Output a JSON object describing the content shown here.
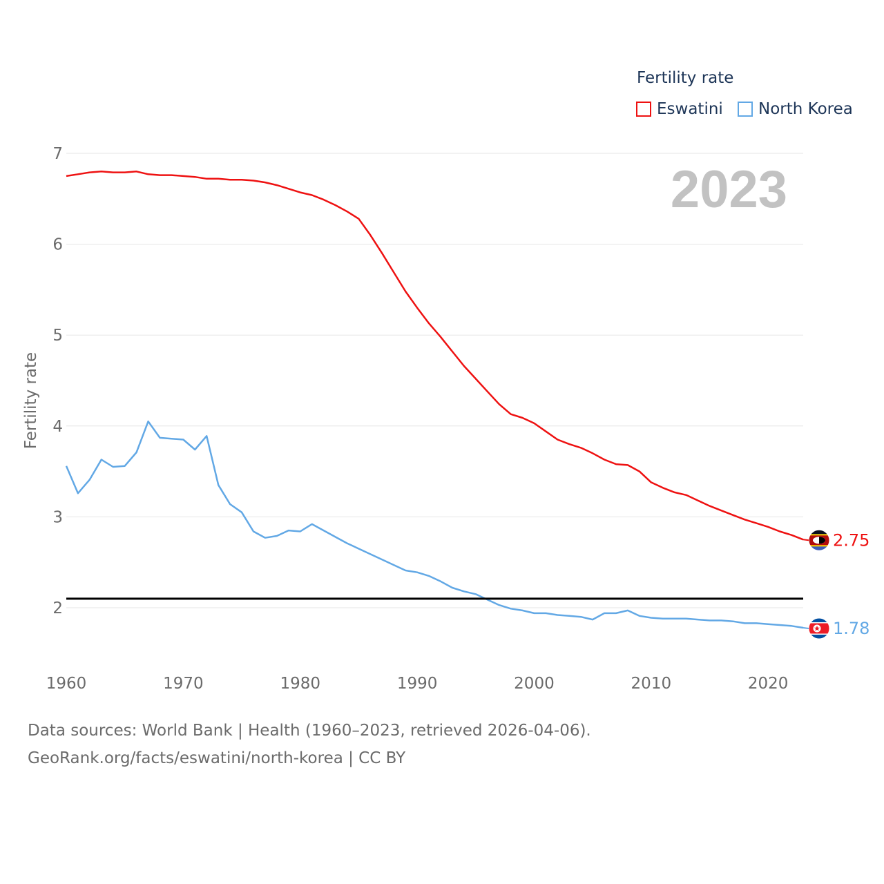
{
  "legend": {
    "title": "Fertility rate",
    "items": [
      {
        "label": "Eswatini",
        "color": "#ee1111"
      },
      {
        "label": "North Korea",
        "color": "#62a8e5"
      }
    ]
  },
  "chart_data": {
    "type": "line",
    "year_label": "2023",
    "ylabel": "Fertility rate",
    "xlim": [
      1960,
      2023
    ],
    "ylim": [
      1.5,
      7
    ],
    "yticks": [
      2,
      3,
      4,
      5,
      6,
      7
    ],
    "xticks": [
      1960,
      1970,
      1980,
      1990,
      2000,
      2010,
      2020
    ],
    "reference_line": 2.1,
    "x": [
      1960,
      1961,
      1962,
      1963,
      1964,
      1965,
      1966,
      1967,
      1968,
      1969,
      1970,
      1971,
      1972,
      1973,
      1974,
      1975,
      1976,
      1977,
      1978,
      1979,
      1980,
      1981,
      1982,
      1983,
      1984,
      1985,
      1986,
      1987,
      1988,
      1989,
      1990,
      1991,
      1992,
      1993,
      1994,
      1995,
      1996,
      1997,
      1998,
      1999,
      2000,
      2001,
      2002,
      2003,
      2004,
      2005,
      2006,
      2007,
      2008,
      2009,
      2010,
      2011,
      2012,
      2013,
      2014,
      2015,
      2016,
      2017,
      2018,
      2019,
      2020,
      2021,
      2022,
      2023
    ],
    "series": [
      {
        "name": "Eswatini",
        "color": "#ee1111",
        "end_label": "2.75",
        "values": [
          6.75,
          6.77,
          6.79,
          6.8,
          6.79,
          6.79,
          6.8,
          6.77,
          6.76,
          6.76,
          6.75,
          6.74,
          6.72,
          6.72,
          6.71,
          6.71,
          6.7,
          6.68,
          6.65,
          6.61,
          6.57,
          6.54,
          6.49,
          6.43,
          6.36,
          6.28,
          6.1,
          5.9,
          5.69,
          5.48,
          5.3,
          5.13,
          4.98,
          4.82,
          4.66,
          4.52,
          4.38,
          4.24,
          4.13,
          4.09,
          4.03,
          3.94,
          3.85,
          3.8,
          3.76,
          3.7,
          3.63,
          3.58,
          3.57,
          3.5,
          3.38,
          3.32,
          3.27,
          3.24,
          3.18,
          3.12,
          3.07,
          3.02,
          2.97,
          2.93,
          2.89,
          2.84,
          2.8,
          2.75
        ]
      },
      {
        "name": "North Korea",
        "color": "#62a8e5",
        "end_label": "1.78",
        "values": [
          3.56,
          3.26,
          3.41,
          3.63,
          3.55,
          3.56,
          3.71,
          4.05,
          3.87,
          3.86,
          3.85,
          3.74,
          3.89,
          3.35,
          3.14,
          3.05,
          2.84,
          2.77,
          2.79,
          2.85,
          2.84,
          2.92,
          2.85,
          2.78,
          2.71,
          2.65,
          2.59,
          2.53,
          2.47,
          2.41,
          2.39,
          2.35,
          2.29,
          2.22,
          2.18,
          2.15,
          2.09,
          2.03,
          1.99,
          1.97,
          1.94,
          1.94,
          1.92,
          1.91,
          1.9,
          1.87,
          1.94,
          1.94,
          1.97,
          1.91,
          1.89,
          1.88,
          1.88,
          1.88,
          1.87,
          1.86,
          1.86,
          1.85,
          1.83,
          1.83,
          1.82,
          1.81,
          1.8,
          1.78
        ]
      }
    ]
  },
  "footer": {
    "line1": "Data sources: World Bank | Health (1960–2023, retrieved 2026-04-06).",
    "line2": "GeoRank.org/facts/eswatini/north-korea | CC BY"
  }
}
